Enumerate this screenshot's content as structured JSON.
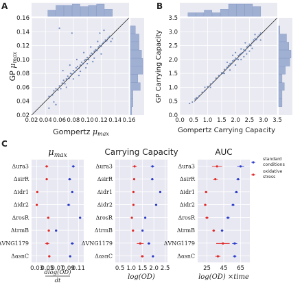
{
  "colors": {
    "panel_bg": "#e8e8f2",
    "grid": "#ffffff",
    "hist": "#9fb0d3",
    "scatter": "#4a6aa8",
    "standard": "#2c3cc8",
    "oxidative": "#e02a2a",
    "diag": "#222222"
  },
  "chart_data": [
    {
      "panel": "A",
      "type": "scatter",
      "xlabel": "Gompertz μmax",
      "ylabel": "GP μmax",
      "xlim": [
        0.02,
        0.16
      ],
      "ylim": [
        0.02,
        0.16
      ],
      "xticks": [
        "0.02",
        "0.04",
        "0.06",
        "0.08",
        "0.10",
        "0.12",
        "0.14",
        "0.16"
      ],
      "yticks": [
        "0.02",
        "0.04",
        "0.06",
        "0.08",
        "0.10",
        "0.12",
        "0.14",
        "0.16"
      ],
      "diagonal": true,
      "marginal_histograms": true,
      "points": [
        [
          0.045,
          0.047
        ],
        [
          0.05,
          0.049
        ],
        [
          0.052,
          0.055
        ],
        [
          0.055,
          0.058
        ],
        [
          0.058,
          0.056
        ],
        [
          0.06,
          0.062
        ],
        [
          0.062,
          0.058
        ],
        [
          0.064,
          0.066
        ],
        [
          0.066,
          0.07
        ],
        [
          0.068,
          0.065
        ],
        [
          0.07,
          0.072
        ],
        [
          0.072,
          0.076
        ],
        [
          0.074,
          0.073
        ],
        [
          0.076,
          0.08
        ],
        [
          0.078,
          0.079
        ],
        [
          0.08,
          0.084
        ],
        [
          0.082,
          0.082
        ],
        [
          0.084,
          0.088
        ],
        [
          0.086,
          0.09
        ],
        [
          0.088,
          0.087
        ],
        [
          0.09,
          0.092
        ],
        [
          0.092,
          0.096
        ],
        [
          0.094,
          0.094
        ],
        [
          0.096,
          0.099
        ],
        [
          0.098,
          0.1
        ],
        [
          0.1,
          0.103
        ],
        [
          0.102,
          0.1
        ],
        [
          0.104,
          0.106
        ],
        [
          0.106,
          0.109
        ],
        [
          0.108,
          0.108
        ],
        [
          0.11,
          0.112
        ],
        [
          0.112,
          0.114
        ],
        [
          0.114,
          0.113
        ],
        [
          0.116,
          0.118
        ],
        [
          0.118,
          0.12
        ],
        [
          0.12,
          0.119
        ],
        [
          0.122,
          0.123
        ],
        [
          0.124,
          0.125
        ],
        [
          0.126,
          0.128
        ],
        [
          0.128,
          0.127
        ],
        [
          0.13,
          0.131
        ],
        [
          0.132,
          0.133
        ],
        [
          0.134,
          0.126
        ],
        [
          0.136,
          0.13
        ],
        [
          0.065,
          0.084
        ],
        [
          0.075,
          0.092
        ],
        [
          0.085,
          0.1
        ],
        [
          0.095,
          0.11
        ],
        [
          0.105,
          0.118
        ],
        [
          0.115,
          0.126
        ],
        [
          0.07,
          0.06
        ],
        [
          0.08,
          0.072
        ],
        [
          0.09,
          0.083
        ],
        [
          0.1,
          0.094
        ],
        [
          0.11,
          0.102
        ],
        [
          0.12,
          0.108
        ],
        [
          0.06,
          0.145
        ],
        [
          0.078,
          0.138
        ],
        [
          0.055,
          0.035
        ],
        [
          0.045,
          0.03
        ],
        [
          0.052,
          0.039
        ],
        [
          0.088,
          0.077
        ],
        [
          0.098,
          0.088
        ],
        [
          0.108,
          0.097
        ],
        [
          0.118,
          0.138
        ],
        [
          0.124,
          0.142
        ]
      ]
    },
    {
      "panel": "B",
      "type": "scatter",
      "xlabel": "Gompertz Carrying Capacity",
      "ylabel": "GP Carrying Capacity",
      "xlim": [
        0.0,
        3.5
      ],
      "ylim": [
        0.0,
        3.5
      ],
      "xticks": [
        "0.0",
        "0.5",
        "1.0",
        "1.5",
        "2.0",
        "2.5",
        "3.0",
        "3.5"
      ],
      "yticks": [
        "0.0",
        "0.5",
        "1.0",
        "1.5",
        "2.0",
        "2.5",
        "3.0",
        "3.5"
      ],
      "diagonal": true,
      "marginal_histograms": true,
      "points": [
        [
          0.35,
          0.42
        ],
        [
          0.45,
          0.47
        ],
        [
          0.55,
          0.58
        ],
        [
          0.6,
          0.62
        ],
        [
          0.7,
          0.69
        ],
        [
          0.8,
          0.82
        ],
        [
          0.9,
          0.88
        ],
        [
          1.0,
          1.02
        ],
        [
          1.1,
          1.12
        ],
        [
          1.2,
          1.19
        ],
        [
          1.3,
          1.33
        ],
        [
          1.4,
          1.42
        ],
        [
          1.5,
          1.52
        ],
        [
          1.55,
          1.5
        ],
        [
          1.6,
          1.64
        ],
        [
          1.7,
          1.72
        ],
        [
          1.75,
          1.78
        ],
        [
          1.8,
          1.84
        ],
        [
          1.85,
          1.86
        ],
        [
          1.9,
          1.95
        ],
        [
          1.95,
          1.98
        ],
        [
          2.0,
          2.05
        ],
        [
          2.05,
          2.02
        ],
        [
          2.1,
          2.14
        ],
        [
          2.15,
          2.18
        ],
        [
          2.2,
          2.22
        ],
        [
          2.25,
          2.24
        ],
        [
          2.3,
          2.35
        ],
        [
          2.35,
          2.32
        ],
        [
          2.4,
          2.45
        ],
        [
          2.45,
          2.48
        ],
        [
          2.5,
          2.55
        ],
        [
          2.55,
          2.5
        ],
        [
          2.6,
          2.62
        ],
        [
          2.65,
          2.7
        ],
        [
          2.7,
          2.75
        ],
        [
          2.75,
          2.72
        ],
        [
          2.8,
          2.82
        ],
        [
          2.85,
          2.88
        ],
        [
          2.9,
          2.95
        ],
        [
          1.9,
          2.15
        ],
        [
          2.0,
          2.25
        ],
        [
          2.1,
          2.0
        ],
        [
          2.2,
          2.38
        ],
        [
          2.3,
          2.1
        ],
        [
          2.4,
          2.2
        ],
        [
          2.0,
          1.8
        ],
        [
          1.8,
          1.62
        ],
        [
          2.5,
          2.3
        ],
        [
          2.6,
          2.4
        ],
        [
          2.7,
          2.9
        ],
        [
          2.2,
          2.0
        ],
        [
          1.6,
          1.5
        ],
        [
          1.7,
          1.9
        ],
        [
          0.9,
          1.0
        ],
        [
          1.1,
          1.0
        ],
        [
          2.9,
          2.7
        ],
        [
          2.35,
          2.6
        ]
      ]
    },
    {
      "panel": "C",
      "type": "dot-errorbar",
      "title": "μmax",
      "xlabel": "dlog(OD)/dt",
      "xlim": [
        0.02,
        0.12
      ],
      "xticks": [
        "0.03",
        "0.05",
        "0.07",
        "0.09",
        "0.11"
      ],
      "categories": [
        "Δura3",
        "ΔsirR",
        "Δidr1",
        "Δidr2",
        "ΔrosR",
        "ΔtrmB",
        "ΔVNG1179",
        "ΔasnC"
      ],
      "series": [
        {
          "name": "standard conditions",
          "values": [
            0.1,
            0.093,
            0.098,
            0.091,
            0.113,
            0.067,
            0.098,
            0.094
          ],
          "err": [
            0.003,
            0.003,
            0.002,
            0.003,
            0.002,
            0.002,
            0.003,
            0.002
          ]
        },
        {
          "name": "oxidative stress",
          "values": [
            0.049,
            0.049,
            0.031,
            0.03,
            0.052,
            0.053,
            0.05,
            0.054
          ],
          "err": [
            0.003,
            0.002,
            0.001,
            0.001,
            0.002,
            0.002,
            0.004,
            0.002
          ]
        }
      ]
    },
    {
      "panel": "C",
      "type": "dot-errorbar",
      "title": "Carrying Capacity",
      "xlabel": "log(OD)",
      "xlim": [
        0.3,
        2.6
      ],
      "xticks": [
        "0.5",
        "1.0",
        "1.5",
        "2.0",
        "2.5"
      ],
      "categories": [
        "Δura3",
        "ΔsirR",
        "Δidr1",
        "Δidr2",
        "ΔrosR",
        "ΔtrmB",
        "ΔVNG1179",
        "ΔasnC"
      ],
      "series": [
        {
          "name": "standard conditions",
          "values": [
            1.94,
            1.93,
            2.28,
            2.1,
            1.62,
            1.5,
            1.78,
            1.96
          ],
          "err": [
            0.08,
            0.06,
            0.04,
            0.05,
            0.04,
            0.04,
            0.06,
            0.05
          ]
        },
        {
          "name": "oxidative stress",
          "values": [
            1.15,
            1.13,
            1.1,
            1.1,
            1.03,
            1.08,
            1.4,
            1.49
          ],
          "err": [
            0.1,
            0.04,
            0.03,
            0.03,
            0.03,
            0.04,
            0.15,
            0.07
          ]
        }
      ]
    },
    {
      "panel": "C",
      "type": "dot-errorbar",
      "title": "AUC",
      "xlabel": "log(OD) ×time",
      "xlim": [
        14,
        76
      ],
      "xticks": [
        "25",
        "45",
        "65"
      ],
      "categories": [
        "Δura3",
        "ΔsirR",
        "Δidr1",
        "Δidr2",
        "ΔrosR",
        "ΔtrmB",
        "ΔVNG1179",
        "ΔasnC"
      ],
      "series": [
        {
          "name": "standard conditions",
          "values": [
            65,
            62,
            60,
            56,
            50,
            43,
            58,
            58
          ],
          "err": [
            4,
            2,
            2,
            2,
            2,
            1.5,
            3,
            2
          ]
        },
        {
          "name": "oxidative stress",
          "values": [
            37,
            35,
            24,
            23,
            25,
            33,
            44,
            38
          ],
          "err": [
            6,
            3,
            1.5,
            1.5,
            2,
            1.5,
            8,
            3
          ]
        }
      ]
    }
  ],
  "panel_labels": {
    "a": "A",
    "b": "B",
    "c": "C"
  },
  "legend": {
    "standard": "standard conditions",
    "oxidative": "oxidative stress"
  }
}
